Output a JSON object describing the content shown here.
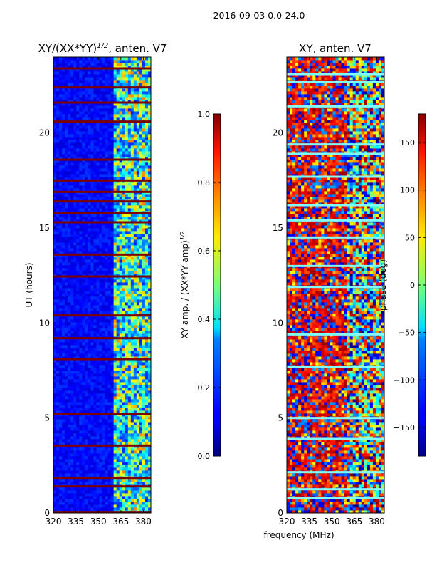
{
  "suptitle": "2016-09-03 0.0-24.0",
  "xlabel": "frequency (MHz)",
  "chart_data": [
    {
      "type": "heatmap",
      "title_main": "XY/(XX*YY)",
      "title_sup": "1/2",
      "title_tail": ", anten. V7",
      "ylabel": "UT (hours)",
      "xlim": [
        320,
        385
      ],
      "ylim": [
        0,
        24
      ],
      "xticks": [
        "320",
        "335",
        "350",
        "365",
        "380"
      ],
      "xtick_values": [
        320,
        335,
        350,
        365,
        380
      ],
      "yticks": [
        "0",
        "5",
        "10",
        "15",
        "20"
      ],
      "ytick_values": [
        0,
        5,
        10,
        15,
        20
      ],
      "colorbar": {
        "label_main": "XY amp. / (XX*YY amp)",
        "label_sup": "1/2",
        "range": [
          0.0,
          1.0
        ],
        "ticks": [
          "0.0",
          "0.2",
          "0.4",
          "0.6",
          "0.8",
          "1.0"
        ],
        "tick_values": [
          0.0,
          0.2,
          0.4,
          0.6,
          0.8,
          1.0
        ],
        "colormap": "jet"
      },
      "flagged_ut_bands_hours": [
        0.05,
        1.4,
        1.85,
        3.55,
        5.2,
        8.1,
        9.2,
        10.4,
        12.45,
        13.6,
        15.3,
        15.8,
        16.4,
        16.9,
        17.5,
        18.6,
        20.6,
        21.6,
        22.4,
        23.4
      ]
    },
    {
      "type": "heatmap",
      "title": "XY, anten. V7",
      "xlim": [
        320,
        385
      ],
      "ylim": [
        0,
        24
      ],
      "xticks": [
        "320",
        "335",
        "350",
        "365",
        "380"
      ],
      "xtick_values": [
        320,
        335,
        350,
        365,
        380
      ],
      "yticks": [
        "0",
        "5",
        "10",
        "15",
        "20"
      ],
      "ytick_values": [
        0,
        5,
        10,
        15,
        20
      ],
      "colorbar": {
        "label": "phase (deg)",
        "range": [
          -180,
          180
        ],
        "ticks": [
          "−150",
          "−100",
          "−50",
          "0",
          "50",
          "100",
          "150"
        ],
        "tick_values": [
          -150,
          -100,
          -50,
          0,
          50,
          100,
          150
        ],
        "colormap": "jet"
      },
      "flagged_ut_bands_hours": [
        0.8,
        1.25,
        2.15,
        3.9,
        5.0,
        7.7,
        9.4,
        11.9,
        13.0,
        14.5,
        15.4,
        16.2,
        17.7,
        18.9,
        19.4,
        21.4,
        22.7,
        23.1
      ]
    }
  ]
}
